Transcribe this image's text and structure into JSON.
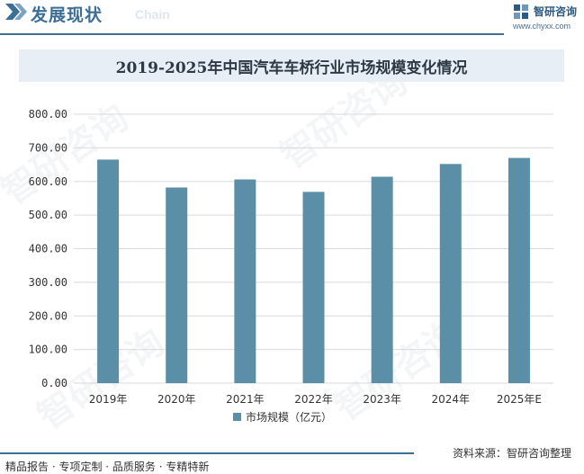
{
  "header": {
    "title": "发展现状",
    "subtitle": "Chain",
    "brand_name": "智研咨询",
    "brand_url": "www.chyxx.com"
  },
  "footer": {
    "left": "精品报告 · 专项定制 · 品质服务 · 专精特新",
    "right": "资料来源：智研咨询整理"
  },
  "watermark_text": "智研咨询",
  "colors": {
    "bar": "#5b8fa7",
    "accent": "#3d6e96",
    "grid": "#d9d9d9"
  },
  "chart_data": {
    "type": "bar",
    "title": "2019-2025年中国汽车车桥行业市场规模变化情况",
    "categories": [
      "2019年",
      "2020年",
      "2021年",
      "2022年",
      "2023年",
      "2024年",
      "2025年E"
    ],
    "series": [
      {
        "name": "市场规模（亿元）",
        "values": [
          665.0,
          582.0,
          606.0,
          569.0,
          614.0,
          652.0,
          670.0
        ]
      }
    ],
    "ylim": [
      0,
      800
    ],
    "yticks": [
      "0.00",
      "100.00",
      "200.00",
      "300.00",
      "400.00",
      "500.00",
      "600.00",
      "700.00",
      "800.00"
    ],
    "grid": true,
    "legend_position": "bottom"
  }
}
